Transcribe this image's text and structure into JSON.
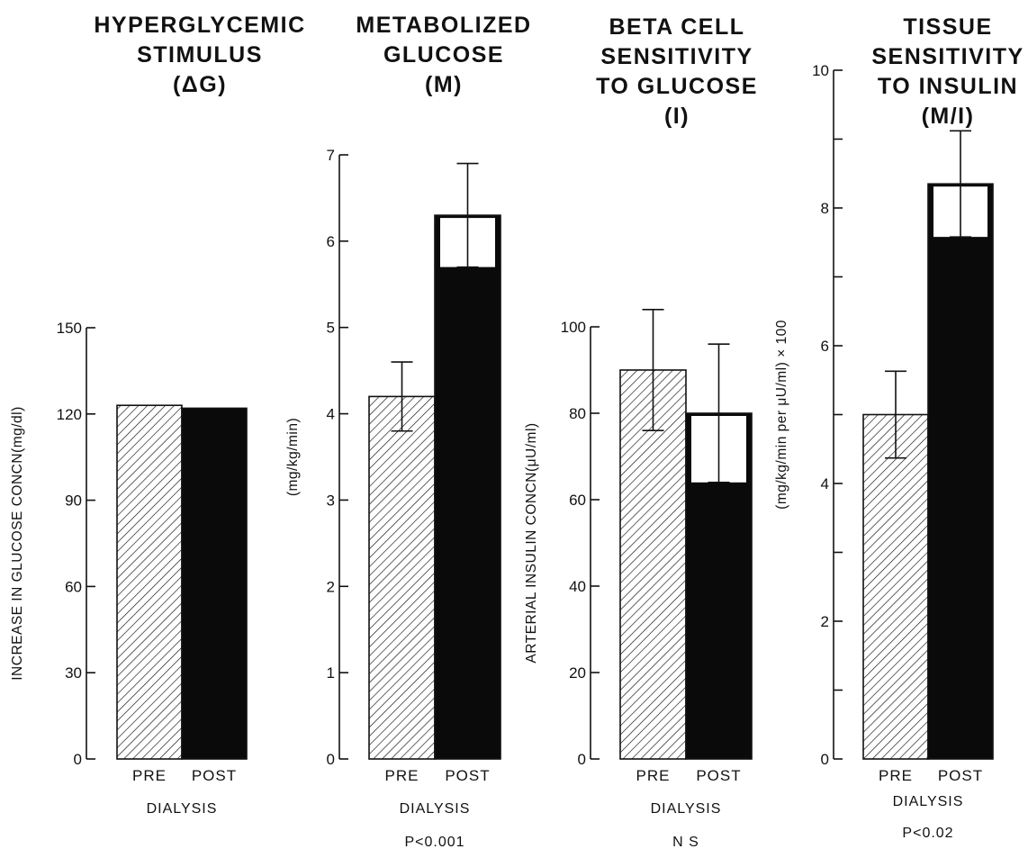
{
  "chart_data": [
    {
      "type": "bar",
      "title_lines": [
        "HYPERGLYCEMIC",
        "STIMULUS",
        "(ΔG)"
      ],
      "ylabel": "INCREASE IN GLUCOSE CONCN(mg/dl)",
      "xlabel": "DIALYSIS",
      "note": "",
      "categories": [
        "PRE",
        "POST"
      ],
      "values": [
        123,
        122
      ],
      "errors": [
        null,
        null
      ],
      "ylim": [
        0,
        150
      ],
      "yticks": [
        0,
        30,
        60,
        90,
        120,
        150
      ],
      "ytick_labels": [
        "0",
        "30",
        "60",
        "90",
        "120",
        "150"
      ],
      "minor_ticks": [],
      "styles": [
        "hatched",
        "solid"
      ],
      "grid": false
    },
    {
      "type": "bar",
      "title_lines": [
        "METABOLIZED",
        "GLUCOSE",
        "(M)"
      ],
      "ylabel": "(mg/kg/min)",
      "xlabel": "DIALYSIS",
      "note": "P<0.001",
      "categories": [
        "PRE",
        "POST"
      ],
      "values": [
        4.2,
        6.3
      ],
      "errors": [
        0.4,
        0.6
      ],
      "ylim": [
        0,
        7
      ],
      "yticks": [
        0,
        1,
        2,
        3,
        4,
        5,
        6,
        7
      ],
      "ytick_labels": [
        "0",
        "1",
        "2",
        "3",
        "4",
        "5",
        "6",
        "7"
      ],
      "minor_ticks": [],
      "styles": [
        "hatched",
        "solid"
      ],
      "grid": false
    },
    {
      "type": "bar",
      "title_lines": [
        "BETA CELL",
        "SENSITIVITY",
        "TO GLUCOSE",
        "(I)"
      ],
      "ylabel": "ARTERIAL INSULIN CONCN(μU/ml)",
      "xlabel": "DIALYSIS",
      "note": "N S",
      "categories": [
        "PRE",
        "POST"
      ],
      "values": [
        90,
        80
      ],
      "errors": [
        14,
        16
      ],
      "ylim": [
        0,
        100
      ],
      "yticks": [
        0,
        20,
        40,
        60,
        80,
        100
      ],
      "ytick_labels": [
        "0",
        "20",
        "40",
        "60",
        "80",
        "100"
      ],
      "minor_ticks": [],
      "styles": [
        "hatched",
        "solid"
      ],
      "grid": false
    },
    {
      "type": "bar",
      "title_lines": [
        "TISSUE",
        "SENSITIVITY",
        "TO INSULIN",
        "(M/I)"
      ],
      "ylabel": "(mg/kg/min per μU/ml) × 100",
      "xlabel": "DIALYSIS",
      "note": "P<0.02",
      "categories": [
        "PRE",
        "POST"
      ],
      "values": [
        5.0,
        8.35
      ],
      "errors": [
        0.63,
        0.77
      ],
      "ylim": [
        0,
        10
      ],
      "yticks": [
        0,
        2,
        4,
        6,
        8,
        10
      ],
      "ytick_labels": [
        "0",
        "2",
        "4",
        "6",
        "8",
        "10"
      ],
      "minor_ticks": [
        1,
        3,
        5,
        7,
        9
      ],
      "styles": [
        "hatched",
        "solid"
      ],
      "grid": false
    }
  ]
}
